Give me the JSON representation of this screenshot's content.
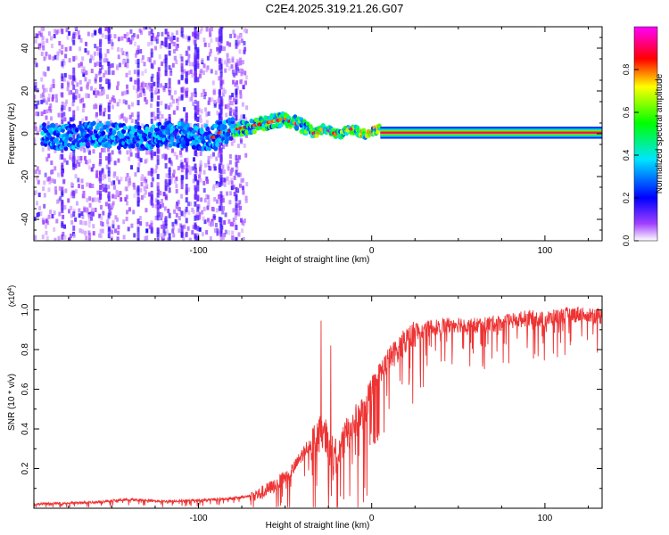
{
  "title": "C2E4.2025.319.21.26.G07",
  "chart_data": [
    {
      "type": "heatmap",
      "xlabel": "Height of straight line (km)",
      "ylabel": "Frequency (Hz)",
      "xlim": [
        -195,
        133
      ],
      "ylim": [
        -50,
        50
      ],
      "xticks": [
        -100,
        0,
        100
      ],
      "yticks": [
        -40,
        -20,
        0,
        20,
        40
      ],
      "colorbar": {
        "label": "Normalized spectral amplitude",
        "range": [
          0,
          1
        ],
        "ticks": [
          "0.0",
          "0.2",
          "0.4",
          "0.6",
          "0.8"
        ],
        "colors": [
          "#ffffff",
          "#7f00ff",
          "#0000ff",
          "#00e5ff",
          "#00ff00",
          "#ffff00",
          "#ff0000",
          "#ff00ff"
        ]
      },
      "features": {
        "noisy_region_x": [
          -195,
          -72
        ],
        "carrier_frequency_hz": 0,
        "bump_peak": {
          "x": -50,
          "freq": 7
        },
        "clean_carrier_start_x": 5
      }
    },
    {
      "type": "line",
      "xlabel": "Height of straight line (km)",
      "ylabel": "SNR (10 * v/v)",
      "y_multiplier": "(x10^4)",
      "xlim": [
        -195,
        133
      ],
      "ylim": [
        0,
        1.07
      ],
      "xticks": [
        -100,
        0,
        100
      ],
      "yticks": [
        "0.2",
        "0.4",
        "0.6",
        "0.8",
        "1.0"
      ],
      "color": "#ee3333",
      "series": [
        {
          "x": [
            -195,
            -180,
            -160,
            -140,
            -120,
            -100,
            -80,
            -65,
            -55,
            -45,
            -38,
            -32,
            -28,
            -24,
            -20,
            -16,
            -12,
            -8,
            -4,
            0,
            5,
            10,
            15,
            20,
            25,
            30,
            40,
            50,
            60,
            70,
            80,
            90,
            100,
            110,
            120,
            133
          ],
          "y": [
            0.02,
            0.025,
            0.03,
            0.045,
            0.035,
            0.04,
            0.05,
            0.07,
            0.12,
            0.2,
            0.3,
            0.35,
            0.4,
            0.3,
            0.25,
            0.35,
            0.4,
            0.45,
            0.5,
            0.6,
            0.68,
            0.75,
            0.8,
            0.85,
            0.88,
            0.9,
            0.92,
            0.93,
            0.92,
            0.93,
            0.94,
            0.96,
            0.95,
            0.97,
            0.98,
            0.97
          ]
        }
      ]
    }
  ]
}
